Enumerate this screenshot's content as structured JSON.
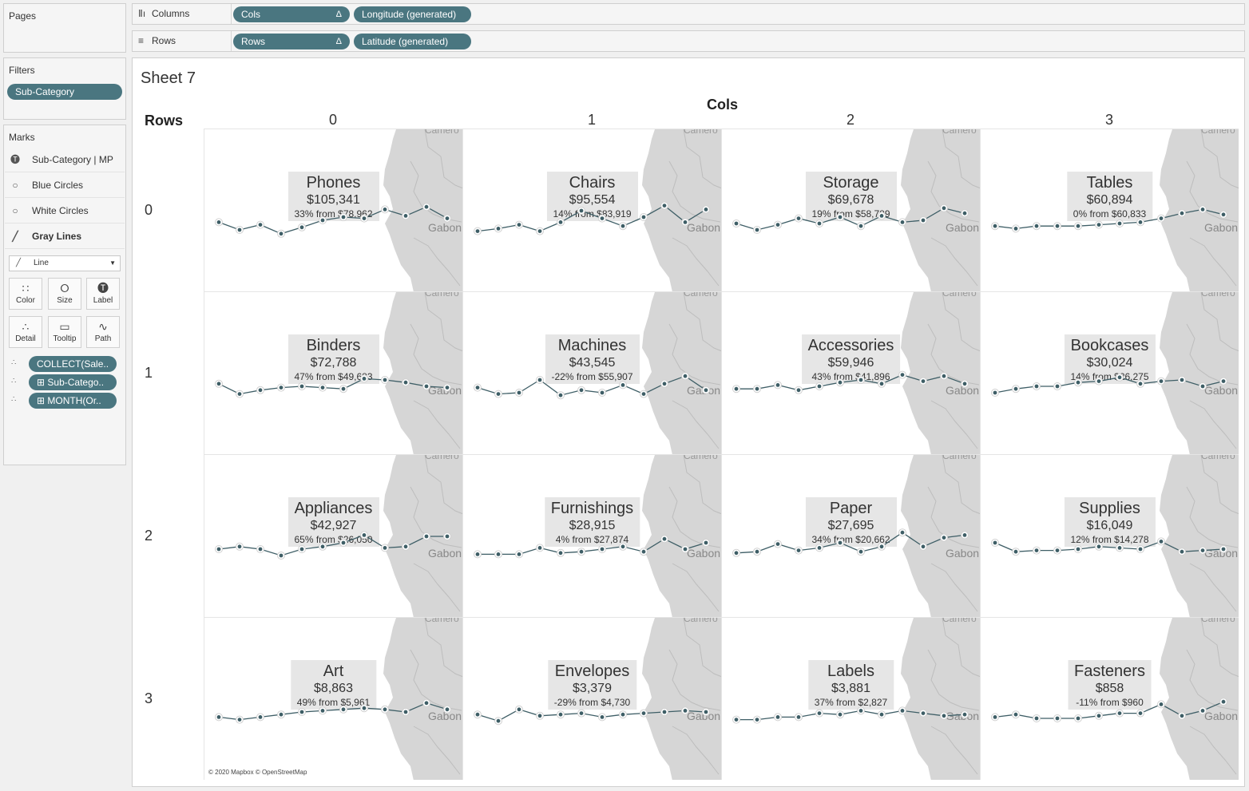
{
  "pages": {
    "title": "Pages"
  },
  "shelves": {
    "columns": {
      "label": "Columns",
      "pills": [
        {
          "text": "Cols",
          "delta": "Δ"
        },
        {
          "text": "Longitude (generated)"
        }
      ]
    },
    "rows": {
      "label": "Rows",
      "pills": [
        {
          "text": "Rows",
          "delta": "Δ"
        },
        {
          "text": "Latitude (generated)"
        }
      ]
    }
  },
  "filters": {
    "title": "Filters",
    "pill": "Sub-Category"
  },
  "marks": {
    "title": "Marks",
    "layers": [
      {
        "label": "Sub-Category | MP",
        "icon": "text-icon"
      },
      {
        "label": "Blue Circles",
        "icon": "circle-icon"
      },
      {
        "label": "White Circles",
        "icon": "circle-icon"
      },
      {
        "label": "Gray Lines",
        "icon": "line-icon"
      }
    ],
    "type_select": "Line",
    "buttons": [
      "Color",
      "Size",
      "Label",
      "Detail",
      "Tooltip",
      "Path"
    ],
    "fields": [
      "COLLECT(Sale..",
      "Sub-Catego..",
      "MONTH(Or.."
    ]
  },
  "view": {
    "sheet_title": "Sheet 7",
    "cols_title": "Cols",
    "rows_title": "Rows",
    "col_headers": [
      "0",
      "1",
      "2",
      "3"
    ],
    "row_headers": [
      "0",
      "1",
      "2",
      "3"
    ],
    "map_label": "Gabon",
    "map_label_top": "Camero",
    "credit": "© 2020 Mapbox © OpenStreetMap"
  },
  "chart_data": {
    "type": "line",
    "cells": [
      {
        "name": "Phones",
        "value": "$105,341",
        "change": "33% from $78,962",
        "spark": [
          0.42,
          0.3,
          0.38,
          0.24,
          0.34,
          0.45,
          0.5,
          0.48,
          0.62,
          0.52,
          0.66,
          0.48
        ]
      },
      {
        "name": "Chairs",
        "value": "$95,554",
        "change": "14% from $83,919",
        "spark": [
          0.28,
          0.32,
          0.38,
          0.28,
          0.42,
          0.6,
          0.48,
          0.36,
          0.5,
          0.68,
          0.42,
          0.62
        ]
      },
      {
        "name": "Storage",
        "value": "$69,678",
        "change": "19% from $58,789",
        "spark": [
          0.4,
          0.3,
          0.38,
          0.48,
          0.4,
          0.5,
          0.36,
          0.52,
          0.42,
          0.45,
          0.64,
          0.56
        ]
      },
      {
        "name": "Tables",
        "value": "$60,894",
        "change": "0% from $60,833",
        "spark": [
          0.36,
          0.32,
          0.36,
          0.36,
          0.36,
          0.38,
          0.4,
          0.42,
          0.48,
          0.56,
          0.62,
          0.54
        ]
      },
      {
        "name": "Binders",
        "value": "$72,788",
        "change": "47% from $49,683",
        "spark": [
          0.44,
          0.28,
          0.34,
          0.38,
          0.4,
          0.38,
          0.36,
          0.52,
          0.5,
          0.46,
          0.4,
          0.38
        ]
      },
      {
        "name": "Machines",
        "value": "$43,545",
        "change": "-22% from $55,907",
        "spark": [
          0.38,
          0.28,
          0.3,
          0.5,
          0.26,
          0.34,
          0.3,
          0.42,
          0.28,
          0.44,
          0.56,
          0.34
        ]
      },
      {
        "name": "Accessories",
        "value": "$59,946",
        "change": "43% from $41,896",
        "spark": [
          0.36,
          0.36,
          0.42,
          0.34,
          0.4,
          0.46,
          0.5,
          0.44,
          0.58,
          0.48,
          0.56,
          0.44
        ]
      },
      {
        "name": "Bookcases",
        "value": "$30,024",
        "change": "14% from $26,275",
        "spark": [
          0.3,
          0.36,
          0.4,
          0.4,
          0.46,
          0.48,
          0.54,
          0.44,
          0.48,
          0.5,
          0.4,
          0.48
        ]
      },
      {
        "name": "Appliances",
        "value": "$42,927",
        "change": "65% from $26,050",
        "spark": [
          0.4,
          0.44,
          0.4,
          0.3,
          0.4,
          0.44,
          0.5,
          0.62,
          0.42,
          0.44,
          0.6,
          0.6
        ]
      },
      {
        "name": "Furnishings",
        "value": "$28,915",
        "change": "4% from $27,874",
        "spark": [
          0.32,
          0.32,
          0.32,
          0.42,
          0.34,
          0.36,
          0.4,
          0.44,
          0.36,
          0.56,
          0.4,
          0.5
        ]
      },
      {
        "name": "Paper",
        "value": "$27,695",
        "change": "34% from $20,662",
        "spark": [
          0.34,
          0.36,
          0.48,
          0.38,
          0.42,
          0.5,
          0.36,
          0.44,
          0.66,
          0.44,
          0.58,
          0.62
        ]
      },
      {
        "name": "Supplies",
        "value": "$16,049",
        "change": "12% from $14,278",
        "spark": [
          0.5,
          0.36,
          0.38,
          0.38,
          0.4,
          0.44,
          0.42,
          0.4,
          0.52,
          0.36,
          0.38,
          0.4
        ]
      },
      {
        "name": "Art",
        "value": "$8,863",
        "change": "49% from $5,961",
        "spark": [
          0.32,
          0.28,
          0.32,
          0.36,
          0.4,
          0.42,
          0.44,
          0.46,
          0.44,
          0.4,
          0.54,
          0.44
        ]
      },
      {
        "name": "Envelopes",
        "value": "$3,379",
        "change": "-29% from $4,730",
        "spark": [
          0.36,
          0.26,
          0.44,
          0.34,
          0.36,
          0.38,
          0.32,
          0.36,
          0.38,
          0.4,
          0.42,
          0.4
        ]
      },
      {
        "name": "Labels",
        "value": "$3,881",
        "change": "37% from $2,827",
        "spark": [
          0.28,
          0.28,
          0.32,
          0.32,
          0.38,
          0.36,
          0.42,
          0.36,
          0.42,
          0.38,
          0.34,
          0.36
        ]
      },
      {
        "name": "Fasteners",
        "value": "$858",
        "change": "-11% from $960",
        "spark": [
          0.32,
          0.36,
          0.3,
          0.3,
          0.3,
          0.34,
          0.38,
          0.38,
          0.52,
          0.34,
          0.42,
          0.56
        ]
      }
    ]
  }
}
